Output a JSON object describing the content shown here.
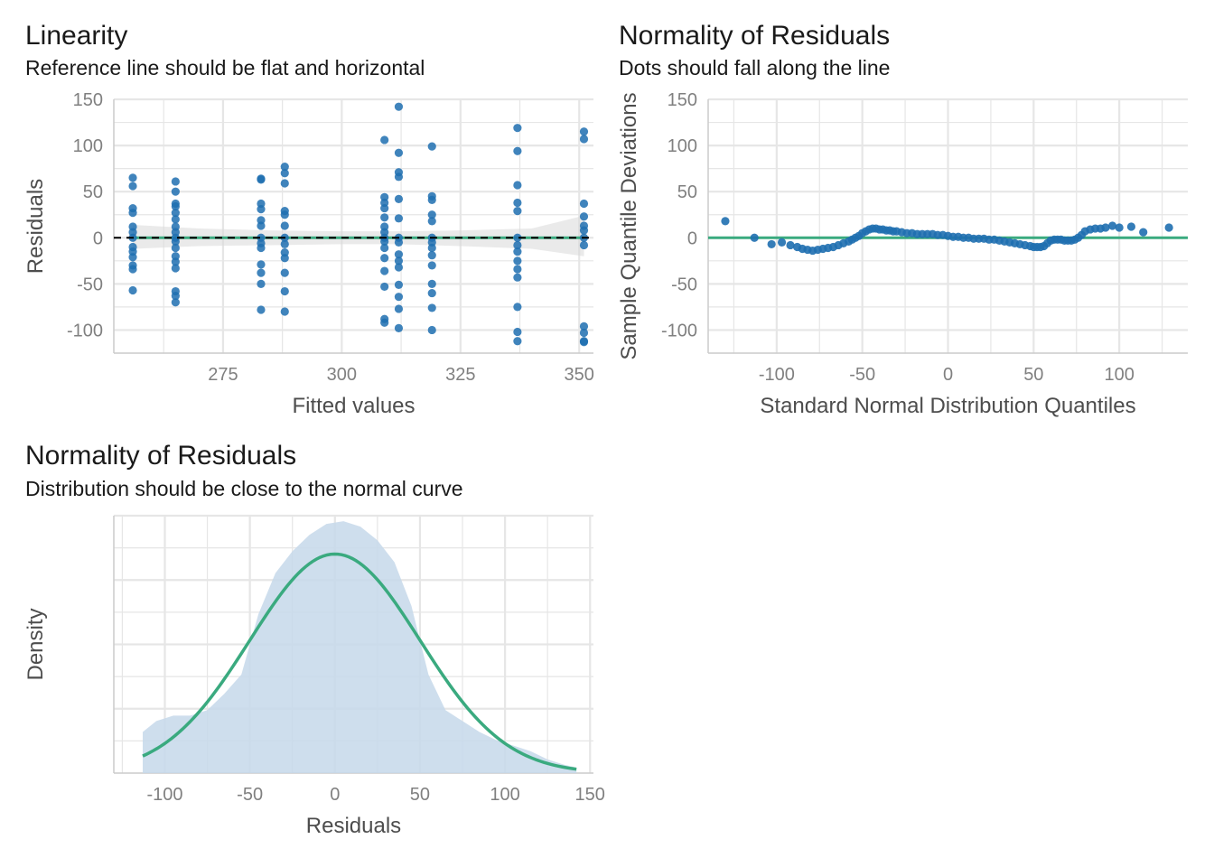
{
  "colors": {
    "point": "#1f6fb0",
    "reference": "#3aaa7f",
    "ribbon": "#d9d9d9",
    "density_fill": "#c5d8ea",
    "grid": "#e6e6e6",
    "axis_text": "#808080",
    "axis_title": "#4d4d4d"
  },
  "chart_data": [
    {
      "id": "linearity",
      "type": "scatter",
      "title": "Linearity",
      "subtitle": "Reference line should be flat and horizontal",
      "xlabel": "Fitted values",
      "ylabel": "Residuals",
      "xlim": [
        252,
        353
      ],
      "ylim": [
        -125,
        150
      ],
      "xticks": [
        275,
        300,
        325,
        350
      ],
      "yticks": [
        -100,
        -50,
        0,
        50,
        100,
        150
      ],
      "grid": true,
      "reference_line": 0,
      "reference_style": "dashed",
      "ribbon": {
        "x": [
          256,
          270,
          285,
          300,
          312,
          325,
          340,
          351
        ],
        "low": [
          -12,
          -9,
          -8,
          -7,
          -7,
          -9,
          -12,
          -20
        ],
        "high": [
          14,
          10,
          8,
          7,
          7,
          8,
          10,
          24
        ]
      },
      "groups": [
        {
          "x": 256,
          "y": [
            65,
            56,
            32,
            27,
            12,
            6,
            0,
            -10,
            -15,
            -21,
            -30,
            -34,
            -57
          ]
        },
        {
          "x": 265,
          "y": [
            61,
            50,
            37,
            34,
            27,
            20,
            12,
            6,
            0,
            -4,
            -11,
            -20,
            -26,
            -33,
            -58,
            -63,
            -70
          ]
        },
        {
          "x": 283,
          "y": [
            64,
            63,
            37,
            31,
            19,
            13,
            0,
            -6,
            -11,
            -29,
            -38,
            -50,
            -78
          ]
        },
        {
          "x": 288,
          "y": [
            77,
            70,
            59,
            29,
            25,
            13,
            0,
            -7,
            -16,
            -22,
            -38,
            -58,
            -80
          ]
        },
        {
          "x": 309,
          "y": [
            106,
            44,
            38,
            32,
            22,
            12,
            6,
            0,
            -4,
            -11,
            -22,
            -36,
            -53,
            -88,
            -92
          ]
        },
        {
          "x": 312,
          "y": [
            142,
            92,
            71,
            66,
            42,
            21,
            0,
            -5,
            -18,
            -25,
            -32,
            -51,
            -64,
            -77,
            -98
          ]
        },
        {
          "x": 319,
          "y": [
            99,
            45,
            41,
            25,
            18,
            0,
            -5,
            -11,
            -19,
            -30,
            -50,
            -60,
            -76,
            -100
          ]
        },
        {
          "x": 337,
          "y": [
            119,
            94,
            57,
            38,
            29,
            0,
            -8,
            -15,
            -25,
            -34,
            -43,
            -75,
            -102,
            -112
          ]
        },
        {
          "x": 351,
          "y": [
            115,
            107,
            37,
            23,
            13,
            8,
            0,
            -8,
            -96,
            -103,
            -112,
            -113
          ]
        }
      ]
    },
    {
      "id": "qq",
      "type": "scatter",
      "title": "Normality of Residuals",
      "subtitle": "Dots should fall along the line",
      "xlabel": "Standard Normal Distribution Quantiles",
      "ylabel": "Sample Quantile Deviations",
      "xlim": [
        -140,
        140
      ],
      "ylim": [
        -125,
        150
      ],
      "xticks": [
        -100,
        -50,
        0,
        50,
        100
      ],
      "yticks": [
        -100,
        -50,
        0,
        50,
        100,
        150
      ],
      "grid": true,
      "reference_line": 0,
      "reference_style": "solid",
      "points": [
        [
          -130,
          18
        ],
        [
          -113,
          0
        ],
        [
          -103,
          -7
        ],
        [
          -97,
          -5
        ],
        [
          -92,
          -8
        ],
        [
          -88,
          -10
        ],
        [
          -85,
          -12
        ],
        [
          -82,
          -13
        ],
        [
          -79,
          -14
        ],
        [
          -76,
          -13
        ],
        [
          -73,
          -12
        ],
        [
          -70,
          -11
        ],
        [
          -67,
          -10
        ],
        [
          -64,
          -8
        ],
        [
          -61,
          -6
        ],
        [
          -58,
          -4
        ],
        [
          -56,
          -2
        ],
        [
          -54,
          0
        ],
        [
          -52,
          2
        ],
        [
          -50,
          5
        ],
        [
          -48,
          7
        ],
        [
          -46,
          9
        ],
        [
          -44,
          10
        ],
        [
          -42,
          10
        ],
        [
          -40,
          9
        ],
        [
          -38,
          9
        ],
        [
          -36,
          8
        ],
        [
          -34,
          8
        ],
        [
          -32,
          7
        ],
        [
          -30,
          7
        ],
        [
          -27,
          6
        ],
        [
          -24,
          5
        ],
        [
          -21,
          5
        ],
        [
          -18,
          4
        ],
        [
          -15,
          4
        ],
        [
          -12,
          4
        ],
        [
          -9,
          4
        ],
        [
          -6,
          3
        ],
        [
          -3,
          3
        ],
        [
          0,
          2
        ],
        [
          3,
          1
        ],
        [
          6,
          1
        ],
        [
          9,
          0
        ],
        [
          12,
          0
        ],
        [
          15,
          -1
        ],
        [
          18,
          -1
        ],
        [
          21,
          -1
        ],
        [
          24,
          -2
        ],
        [
          27,
          -2
        ],
        [
          30,
          -3
        ],
        [
          33,
          -4
        ],
        [
          36,
          -5
        ],
        [
          39,
          -6
        ],
        [
          42,
          -7
        ],
        [
          45,
          -8
        ],
        [
          48,
          -9
        ],
        [
          50,
          -10
        ],
        [
          52,
          -10
        ],
        [
          54,
          -10
        ],
        [
          56,
          -9
        ],
        [
          58,
          -6
        ],
        [
          60,
          -3
        ],
        [
          62,
          -2
        ],
        [
          64,
          -2
        ],
        [
          66,
          -2
        ],
        [
          68,
          -3
        ],
        [
          70,
          -3
        ],
        [
          72,
          -3
        ],
        [
          74,
          -2
        ],
        [
          76,
          0
        ],
        [
          78,
          3
        ],
        [
          80,
          7
        ],
        [
          83,
          9
        ],
        [
          86,
          10
        ],
        [
          89,
          10
        ],
        [
          92,
          11
        ],
        [
          96,
          13
        ],
        [
          100,
          11
        ],
        [
          107,
          12
        ],
        [
          114,
          6
        ],
        [
          129,
          11
        ]
      ]
    },
    {
      "id": "density",
      "type": "area",
      "title": "Normality of Residuals",
      "subtitle": "Distribution should be close to the normal curve",
      "xlabel": "Residuals",
      "ylabel": "Density",
      "xlim": [
        -130,
        152
      ],
      "ylim": [
        0,
        0.0094
      ],
      "xticks": [
        -100,
        -50,
        0,
        50,
        100,
        150
      ],
      "grid": true,
      "density": [
        [
          -113,
          0.0015
        ],
        [
          -105,
          0.0019
        ],
        [
          -95,
          0.0021
        ],
        [
          -85,
          0.0021
        ],
        [
          -75,
          0.0023
        ],
        [
          -65,
          0.0029
        ],
        [
          -55,
          0.0036
        ],
        [
          -45,
          0.0058
        ],
        [
          -35,
          0.0073
        ],
        [
          -25,
          0.0081
        ],
        [
          -15,
          0.0087
        ],
        [
          -5,
          0.0091
        ],
        [
          5,
          0.0092
        ],
        [
          15,
          0.009
        ],
        [
          25,
          0.0085
        ],
        [
          35,
          0.0077
        ],
        [
          45,
          0.0061
        ],
        [
          55,
          0.0036
        ],
        [
          65,
          0.0023
        ],
        [
          75,
          0.0019
        ],
        [
          85,
          0.0015
        ],
        [
          95,
          0.0012
        ],
        [
          105,
          0.001
        ],
        [
          115,
          0.0008
        ],
        [
          125,
          0.0005
        ],
        [
          135,
          0.0003
        ],
        [
          142,
          0.0002
        ]
      ],
      "normal_curve": {
        "mean": 0,
        "sd": 50,
        "x_from": -113,
        "x_to": 142,
        "peak": 0.008
      }
    }
  ]
}
